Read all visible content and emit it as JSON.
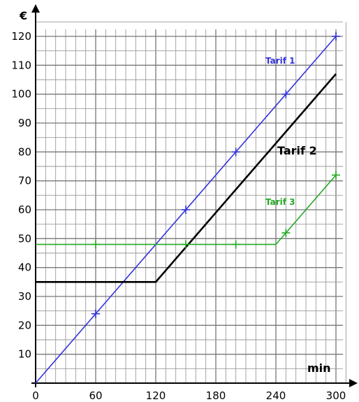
{
  "chart_data": {
    "type": "line",
    "title": "",
    "xlabel": "min",
    "ylabel": "€",
    "xlim": [
      0,
      300
    ],
    "ylim": [
      0,
      120
    ],
    "x_ticks": [
      0,
      60,
      120,
      180,
      240,
      300
    ],
    "y_ticks": [
      10,
      20,
      30,
      40,
      50,
      60,
      70,
      80,
      90,
      100,
      110,
      120
    ],
    "grid": true,
    "minor_grid": {
      "x_step": 10,
      "y_step": 5
    },
    "series": [
      {
        "name": "Tarif 1",
        "color": "#3333dd",
        "points": [
          [
            0,
            0
          ],
          [
            300,
            120
          ]
        ],
        "markers": [
          [
            60,
            24
          ],
          [
            150,
            60
          ],
          [
            200,
            80
          ],
          [
            250,
            100
          ],
          [
            300,
            120
          ]
        ]
      },
      {
        "name": "Tarif 2",
        "color": "#000000",
        "points": [
          [
            0,
            35
          ],
          [
            120,
            35
          ],
          [
            300,
            107
          ]
        ],
        "markers": []
      },
      {
        "name": "Tarif 3",
        "color": "#22aa22",
        "points": [
          [
            0,
            48
          ],
          [
            240,
            48
          ],
          [
            300,
            72
          ]
        ],
        "markers": [
          [
            60,
            48
          ],
          [
            150,
            48
          ],
          [
            200,
            48
          ],
          [
            250,
            52
          ],
          [
            300,
            72
          ]
        ]
      }
    ]
  }
}
